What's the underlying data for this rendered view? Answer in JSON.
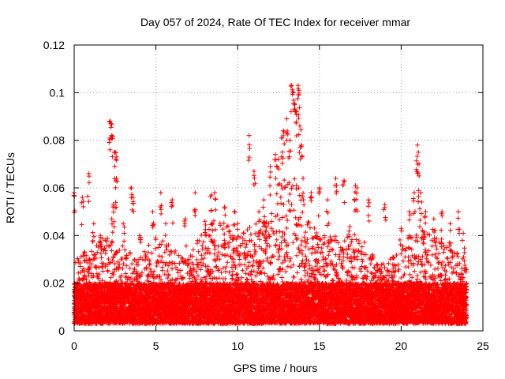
{
  "chart_data": {
    "type": "scatter",
    "title": "Day 057 of 2024, Rate Of TEC Index for receiver mmar",
    "xlabel": "GPS time / hours",
    "ylabel": "ROTI / TECUs",
    "xlim": [
      0,
      25
    ],
    "ylim": [
      0,
      0.12
    ],
    "xticks": [
      "0",
      "5",
      "10",
      "15",
      "20",
      "25"
    ],
    "yticks": [
      "0",
      "0.02",
      "0.04",
      "0.06",
      "0.08",
      "0.1",
      "0.12"
    ],
    "grid": true,
    "marker": "plus",
    "color": "#ff0000",
    "series": [
      {
        "name": "ROTI",
        "points": [
          [
            0.0,
            0.058
          ],
          [
            0.5,
            0.056
          ],
          [
            0.9,
            0.066
          ],
          [
            1.2,
            0.045
          ],
          [
            1.6,
            0.04
          ],
          [
            2.2,
            0.088
          ],
          [
            2.25,
            0.087
          ],
          [
            2.3,
            0.082
          ],
          [
            2.5,
            0.075
          ],
          [
            2.6,
            0.073
          ],
          [
            2.55,
            0.063
          ],
          [
            2.4,
            0.053
          ],
          [
            2.3,
            0.047
          ],
          [
            3.0,
            0.045
          ],
          [
            3.5,
            0.06
          ],
          [
            3.6,
            0.056
          ],
          [
            4.0,
            0.04
          ],
          [
            4.8,
            0.05
          ],
          [
            5.3,
            0.058
          ],
          [
            5.6,
            0.045
          ],
          [
            6.0,
            0.055
          ],
          [
            6.8,
            0.047
          ],
          [
            7.4,
            0.058
          ],
          [
            8.0,
            0.046
          ],
          [
            8.4,
            0.057
          ],
          [
            8.6,
            0.058
          ],
          [
            9.2,
            0.052
          ],
          [
            9.8,
            0.05
          ],
          [
            10.0,
            0.045
          ],
          [
            10.7,
            0.082
          ],
          [
            11.0,
            0.067
          ],
          [
            11.3,
            0.05
          ],
          [
            11.6,
            0.055
          ],
          [
            12.0,
            0.069
          ],
          [
            12.3,
            0.074
          ],
          [
            12.5,
            0.072
          ],
          [
            12.7,
            0.081
          ],
          [
            12.8,
            0.084
          ],
          [
            13.0,
            0.089
          ],
          [
            13.2,
            0.08
          ],
          [
            13.3,
            0.103
          ],
          [
            13.4,
            0.1
          ],
          [
            13.5,
            0.095
          ],
          [
            13.6,
            0.092
          ],
          [
            13.7,
            0.103
          ],
          [
            13.75,
            0.101
          ],
          [
            13.8,
            0.086
          ],
          [
            13.9,
            0.078
          ],
          [
            14.0,
            0.064
          ],
          [
            14.5,
            0.058
          ],
          [
            15.0,
            0.06
          ],
          [
            15.5,
            0.055
          ],
          [
            16.0,
            0.064
          ],
          [
            16.5,
            0.063
          ],
          [
            17.2,
            0.061
          ],
          [
            17.3,
            0.06
          ],
          [
            18.0,
            0.055
          ],
          [
            19.0,
            0.053
          ],
          [
            20.0,
            0.043
          ],
          [
            20.5,
            0.05
          ],
          [
            20.8,
            0.058
          ],
          [
            21.0,
            0.078
          ],
          [
            21.05,
            0.075
          ],
          [
            21.1,
            0.065
          ],
          [
            21.2,
            0.058
          ],
          [
            21.5,
            0.05
          ],
          [
            22.0,
            0.047
          ],
          [
            22.5,
            0.05
          ],
          [
            23.0,
            0.045
          ],
          [
            23.5,
            0.05
          ],
          [
            23.8,
            0.041
          ]
        ],
        "dense_band": {
          "description": "dense cloud of points at every time step",
          "base_min": 0.003,
          "base_max": 0.02,
          "envelope": [
            [
              0,
              0.03
            ],
            [
              1,
              0.035
            ],
            [
              2,
              0.04
            ],
            [
              3,
              0.035
            ],
            [
              4,
              0.03
            ],
            [
              5,
              0.042
            ],
            [
              6,
              0.035
            ],
            [
              7,
              0.03
            ],
            [
              8,
              0.045
            ],
            [
              9,
              0.048
            ],
            [
              10,
              0.04
            ],
            [
              11,
              0.045
            ],
            [
              12,
              0.05
            ],
            [
              12.5,
              0.06
            ],
            [
              13,
              0.065
            ],
            [
              13.5,
              0.07
            ],
            [
              14,
              0.05
            ],
            [
              15,
              0.04
            ],
            [
              16,
              0.04
            ],
            [
              17,
              0.045
            ],
            [
              18,
              0.035
            ],
            [
              19,
              0.028
            ],
            [
              20,
              0.035
            ],
            [
              21,
              0.045
            ],
            [
              22,
              0.04
            ],
            [
              23,
              0.035
            ],
            [
              24,
              0.03
            ]
          ]
        }
      }
    ]
  }
}
